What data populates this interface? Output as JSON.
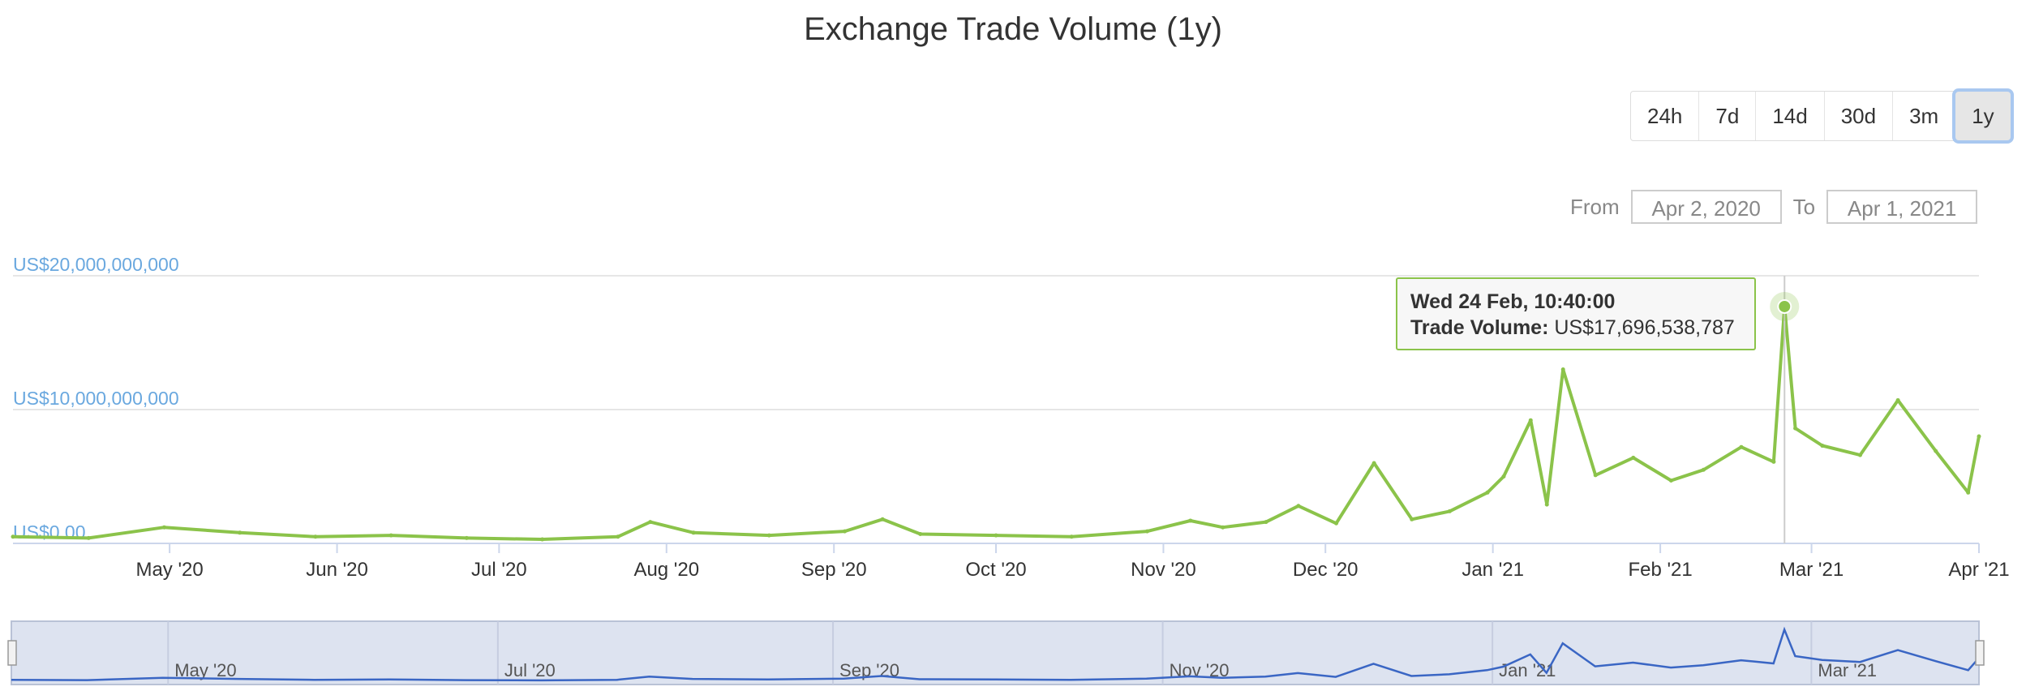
{
  "title": "Exchange Trade Volume (1y)",
  "range_selector": {
    "buttons": [
      "24h",
      "7d",
      "14d",
      "30d",
      "3m",
      "1y"
    ],
    "active": "1y"
  },
  "date_range": {
    "from_label": "From",
    "from_value": "Apr 2, 2020",
    "to_label": "To",
    "to_value": "Apr 1, 2021"
  },
  "tooltip": {
    "date": "Wed 24 Feb, 10:40:00",
    "label": "Trade Volume:",
    "value": "US$17,696,538,787"
  },
  "colors": {
    "series": "#8bc34a",
    "navigator_line": "#3a66c4",
    "navigator_fill": "#dde3f0",
    "axis_label": "#6aa8df"
  },
  "chart_data": {
    "type": "line",
    "title": "Exchange Trade Volume (1y)",
    "series": [
      {
        "name": "Trade Volume",
        "x": [
          "2020-04-02",
          "2020-04-16",
          "2020-04-30",
          "2020-05-14",
          "2020-05-28",
          "2020-06-11",
          "2020-06-25",
          "2020-07-09",
          "2020-07-23",
          "2020-07-29",
          "2020-08-06",
          "2020-08-20",
          "2020-09-03",
          "2020-09-10",
          "2020-09-17",
          "2020-10-01",
          "2020-10-15",
          "2020-10-29",
          "2020-11-06",
          "2020-11-12",
          "2020-11-20",
          "2020-11-26",
          "2020-12-03",
          "2020-12-10",
          "2020-12-17",
          "2020-12-24",
          "2020-12-31",
          "2021-01-03",
          "2021-01-08",
          "2021-01-11",
          "2021-01-14",
          "2021-01-20",
          "2021-01-27",
          "2021-02-03",
          "2021-02-09",
          "2021-02-16",
          "2021-02-22",
          "2021-02-24",
          "2021-02-26",
          "2021-03-03",
          "2021-03-10",
          "2021-03-17",
          "2021-03-24",
          "2021-03-30",
          "2021-04-01"
        ],
        "y": [
          0.5,
          0.4,
          1.2,
          0.8,
          0.5,
          0.6,
          0.4,
          0.3,
          0.5,
          1.6,
          0.8,
          0.6,
          0.9,
          1.8,
          0.7,
          0.6,
          0.5,
          0.9,
          1.7,
          1.2,
          1.6,
          2.8,
          1.5,
          6.0,
          1.8,
          2.4,
          3.8,
          5.0,
          9.2,
          2.9,
          13.0,
          5.1,
          6.4,
          4.7,
          5.5,
          7.2,
          6.1,
          17.7,
          8.6,
          7.3,
          6.6,
          10.7,
          6.9,
          3.8,
          8.0
        ],
        "unit": "US$ billion"
      }
    ],
    "y_ticks": [
      "US$0.00",
      "US$10,000,000,000",
      "US$20,000,000,000"
    ],
    "x_ticks": [
      "May '20",
      "Jun '20",
      "Jul '20",
      "Aug '20",
      "Sep '20",
      "Oct '20",
      "Nov '20",
      "Dec '20",
      "Jan '21",
      "Feb '21",
      "Mar '21",
      "Apr '21"
    ],
    "navigator_ticks": [
      "May '20",
      "Jul '20",
      "Sep '20",
      "Nov '20",
      "Jan '21",
      "Mar '21"
    ],
    "ylim": [
      0,
      20
    ],
    "xlim": [
      "2020-04-02",
      "2021-04-01"
    ],
    "grid": true,
    "legend": "none"
  }
}
